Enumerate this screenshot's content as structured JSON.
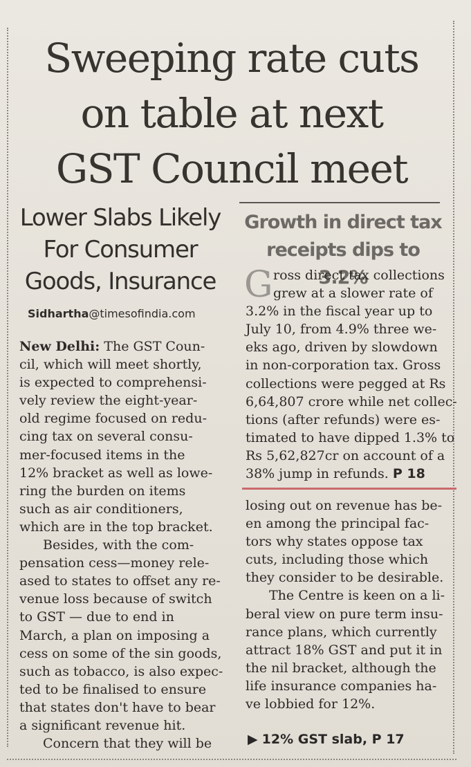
{
  "headline": {
    "lines": [
      "Sweeping rate cuts",
      "on table at next",
      "GST Council meet"
    ]
  },
  "subhead": {
    "lines": [
      "Lower Slabs Likely",
      "For Consumer",
      "Goods, Insurance"
    ]
  },
  "byline": {
    "name": "Sidhartha",
    "domain": "@timesofindia.com"
  },
  "article_left": {
    "dateline": "New Delhi:",
    "lines": [
      " The GST Coun-",
      "cil, which will meet shortly,",
      "is expected to comprehensi-",
      "vely review the eight-year-",
      "old regime focused on redu-",
      "cing tax on several consu-",
      "mer-focused items in the",
      "12% bracket as well as lowe-",
      "ring the burden on items",
      "such as air conditioners,",
      "which are in the top bracket.",
      "Besides, with the com-",
      "pensation cess—money rele-",
      "ased to states to offset any re-",
      "venue loss because of switch",
      "to GST — due to end in",
      "March, a plan on imposing a",
      "cess on some of the sin goods,",
      "such as tobacco, is also expec-",
      "ted to be finalised to ensure",
      "that states don't have to bear",
      "a significant revenue hit.",
      "Concern that they will be"
    ]
  },
  "box": {
    "headline_lines": [
      "Growth in direct tax",
      "receipts dips to 3.2%"
    ],
    "dropcap": "G",
    "lines": [
      "ross direct tax collections",
      "grew at a slower rate of",
      "3.2% in the fiscal year up to",
      "July 10, from 4.9% three we-",
      "eks ago, driven by slowdown",
      "in non-corporation tax. Gross",
      "collections were pegged at Rs",
      "6,64,807 crore while net collec-",
      "tions (after refunds) were es-",
      "timated to have dipped 1.3% to",
      "Rs 5,62,827cr on account of a",
      "38% jump in refunds."
    ],
    "page_ref": "P 18"
  },
  "article_right": {
    "lines": [
      "losing out on revenue has be-",
      "en among the principal fac-",
      "tors why states oppose tax",
      "cuts, including those which",
      "they consider to be desirable.",
      "The Centre is keen on a li-",
      "beral view on pure term insu-",
      "rance plans, which currently",
      "attract 18% GST and put it in",
      "the nil bracket, although the",
      "life insurance companies ha-",
      "ve lobbied for 12%."
    ]
  },
  "jump": {
    "arrow": "▶",
    "text": "12% GST slab, P 17"
  }
}
